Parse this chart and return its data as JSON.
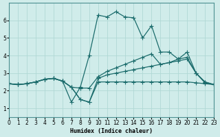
{
  "xlabel": "Humidex (Indice chaleur)",
  "background_color": "#d0ecea",
  "grid_color": "#b0d8d5",
  "line_color": "#1a6b6b",
  "xlim": [
    0,
    23
  ],
  "ylim": [
    0.5,
    7
  ],
  "yticks": [
    1,
    2,
    3,
    4,
    5,
    6
  ],
  "xticks": [
    0,
    1,
    2,
    3,
    4,
    5,
    6,
    7,
    8,
    9,
    10,
    11,
    12,
    13,
    14,
    15,
    16,
    17,
    18,
    19,
    20,
    21,
    22,
    23
  ],
  "line1_x": [
    0,
    1,
    2,
    3,
    4,
    5,
    6,
    7,
    8,
    9,
    10,
    11,
    12,
    13,
    14,
    15,
    16,
    17,
    18,
    19,
    20,
    21,
    22,
    23
  ],
  "line1_y": [
    2.4,
    2.35,
    2.4,
    2.5,
    2.65,
    2.7,
    2.55,
    2.2,
    1.5,
    1.35,
    2.5,
    2.5,
    2.5,
    2.5,
    2.5,
    2.5,
    2.5,
    2.5,
    2.5,
    2.5,
    2.5,
    2.45,
    2.4,
    2.35
  ],
  "line2_x": [
    0,
    1,
    2,
    3,
    4,
    5,
    6,
    7,
    8,
    9,
    10,
    11,
    12,
    13,
    14,
    15,
    16,
    17,
    18,
    19,
    20,
    21,
    22,
    23
  ],
  "line2_y": [
    2.4,
    2.35,
    2.4,
    2.5,
    2.65,
    2.7,
    2.55,
    2.2,
    1.5,
    1.35,
    2.7,
    2.9,
    3.0,
    3.1,
    3.2,
    3.3,
    3.4,
    3.5,
    3.6,
    3.7,
    3.8,
    3.0,
    2.5,
    2.35
  ],
  "line3_x": [
    0,
    1,
    2,
    3,
    4,
    5,
    6,
    7,
    8,
    9,
    10,
    11,
    12,
    13,
    14,
    15,
    16,
    17,
    18,
    19,
    20,
    21,
    22,
    23
  ],
  "line3_y": [
    2.4,
    2.35,
    2.4,
    2.5,
    2.65,
    2.7,
    2.55,
    2.2,
    2.15,
    2.15,
    2.8,
    3.1,
    3.3,
    3.5,
    3.7,
    3.9,
    4.1,
    3.5,
    3.6,
    3.8,
    3.9,
    3.0,
    2.5,
    2.35
  ],
  "line4_x": [
    0,
    1,
    2,
    3,
    4,
    5,
    6,
    7,
    8,
    9,
    10,
    11,
    12,
    13,
    14,
    15,
    16,
    17,
    18,
    19,
    20,
    21,
    22,
    23
  ],
  "line4_y": [
    2.4,
    2.35,
    2.4,
    2.5,
    2.65,
    2.7,
    2.55,
    1.35,
    2.2,
    4.0,
    6.3,
    6.2,
    6.5,
    6.2,
    6.15,
    5.0,
    5.7,
    4.2,
    4.2,
    3.8,
    4.2,
    3.0,
    2.45,
    2.35
  ]
}
